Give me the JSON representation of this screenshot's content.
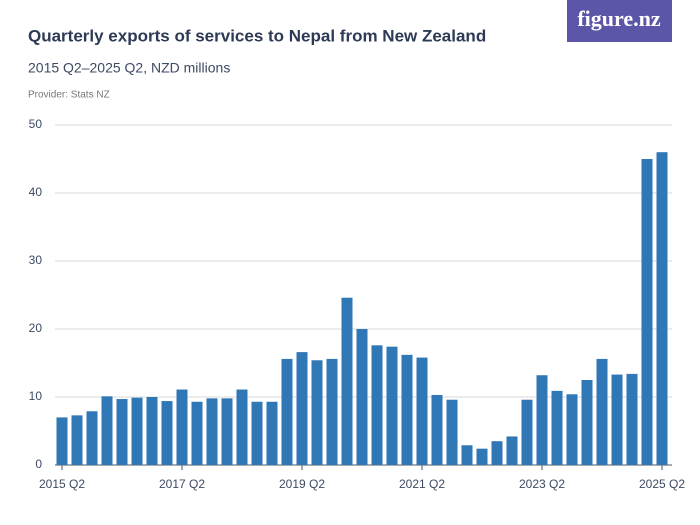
{
  "logo": "figure.nz",
  "chart_data": {
    "type": "bar",
    "title": "Quarterly exports of services to Nepal from New Zealand",
    "subtitle": "2015 Q2–2025 Q2, NZD millions",
    "provider": "Provider: Stats NZ",
    "categories": [
      "2015 Q2",
      null,
      null,
      null,
      null,
      null,
      null,
      null,
      "2017 Q2",
      null,
      null,
      null,
      null,
      null,
      null,
      null,
      "2019 Q2",
      null,
      null,
      null,
      null,
      null,
      null,
      null,
      "2021 Q2",
      null,
      null,
      null,
      null,
      null,
      null,
      null,
      "2023 Q2",
      null,
      null,
      null,
      null,
      null,
      null,
      null,
      "2025 Q2"
    ],
    "values": [
      7.0,
      7.3,
      7.9,
      10.1,
      9.7,
      9.9,
      10.0,
      9.4,
      11.1,
      9.3,
      9.8,
      9.8,
      11.1,
      9.3,
      9.3,
      15.6,
      16.6,
      15.4,
      15.6,
      24.6,
      20.0,
      17.6,
      17.4,
      16.2,
      15.8,
      10.3,
      9.6,
      2.9,
      2.4,
      3.5,
      4.2,
      9.6,
      13.2,
      10.9,
      10.4,
      12.5,
      15.6,
      13.3,
      13.4,
      45.0,
      46.0
    ],
    "color": "#2f77b5",
    "ylim": [
      0,
      50
    ],
    "yticks": [
      0,
      10,
      20,
      30,
      40,
      50
    ],
    "grid": true
  }
}
